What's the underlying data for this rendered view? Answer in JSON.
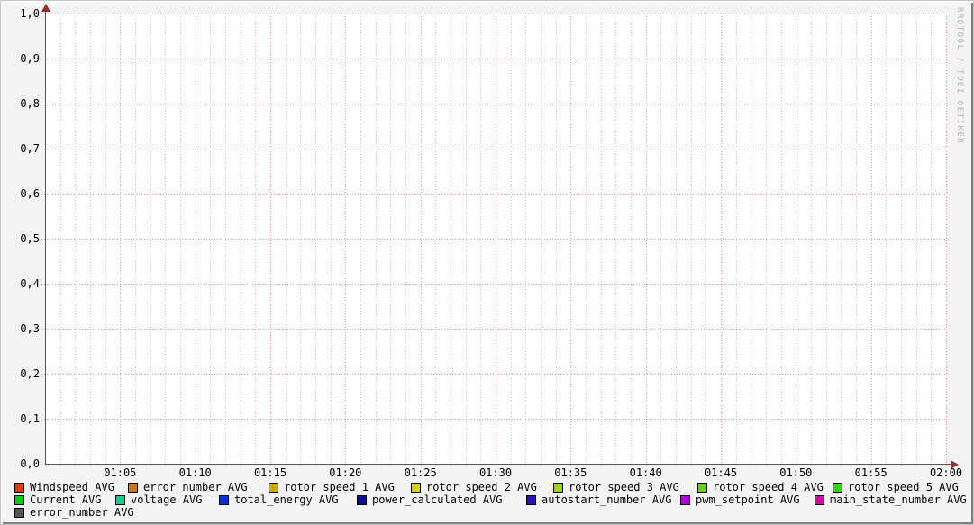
{
  "watermark": {
    "text": "RRDTOOL / TOBI OETIKER"
  },
  "chart_data": {
    "type": "line",
    "title": "",
    "xlabel": "",
    "ylabel": "",
    "x_axis": {
      "range": [
        "01:00",
        "02:00"
      ],
      "tick_labels": [
        "01:05",
        "01:10",
        "01:15",
        "01:20",
        "01:25",
        "01:30",
        "01:35",
        "01:40",
        "01:45",
        "01:50",
        "01:55",
        "02:00"
      ],
      "minor_step_minutes": 1,
      "major_step_minutes": 5
    },
    "y_axis": {
      "range": [
        0.0,
        1.0
      ],
      "tick_labels": [
        "1,0",
        "0,9",
        "0,8",
        "0,7",
        "0,6",
        "0,5",
        "0,4",
        "0,3",
        "0,2",
        "0,1",
        "0,0"
      ],
      "major_step": 0.1
    },
    "grid": {
      "enabled": true,
      "style": "dotted",
      "major_color": "#ec9393",
      "minor_color": "#cccccc"
    },
    "legend_position": "bottom",
    "series": [
      {
        "name": "Windspeed AVG",
        "color": "#e43b0c",
        "values": []
      },
      {
        "name": "error_number AVG",
        "color": "#d67300",
        "values": []
      },
      {
        "name": "rotor speed 1 AVG",
        "color": "#d0a800",
        "values": []
      },
      {
        "name": "rotor speed 2 AVG",
        "color": "#d6d400",
        "values": []
      },
      {
        "name": "rotor speed 3 AVG",
        "color": "#9fd500",
        "values": []
      },
      {
        "name": "rotor speed 4 AVG",
        "color": "#63d500",
        "values": []
      },
      {
        "name": "rotor speed 5 AVG",
        "color": "#2fd40b",
        "values": []
      },
      {
        "name": "Current AVG",
        "color": "#00d400",
        "values": []
      },
      {
        "name": "voltage AVG",
        "color": "#00d591",
        "values": []
      },
      {
        "name": "total_energy AVG",
        "color": "#0531d8",
        "values": []
      },
      {
        "name": "power_calculated AVG",
        "color": "#060e9c",
        "values": []
      },
      {
        "name": "autostart_number AVG",
        "color": "#3309cf",
        "values": []
      },
      {
        "name": "pwm_setpoint AVG",
        "color": "#ab06d5",
        "values": []
      },
      {
        "name": "main_state_number AVG",
        "color": "#d606a8",
        "values": []
      },
      {
        "name": "error_number AVG",
        "color": "#555555",
        "values": []
      }
    ]
  }
}
